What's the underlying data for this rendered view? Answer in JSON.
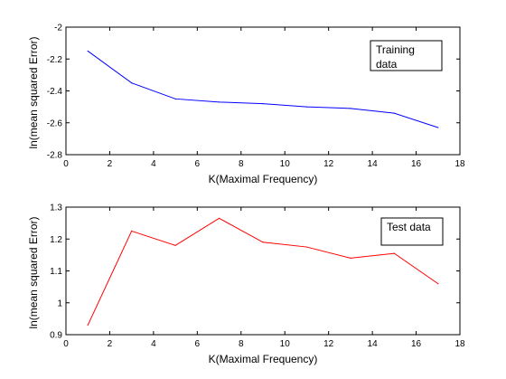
{
  "chart_data": [
    {
      "type": "line",
      "xlabel": "K(Maximal Frequency)",
      "ylabel": "ln(mean squared Error)",
      "xlim": [
        0,
        18
      ],
      "ylim": [
        -2.8,
        -2
      ],
      "xticks": [
        0,
        2,
        4,
        6,
        8,
        10,
        12,
        14,
        16,
        18
      ],
      "yticks": [
        -2.8,
        -2.6,
        -2.4,
        -2.2,
        -2
      ],
      "ytick_labels": [
        "-2.8",
        "-2.6",
        "-2.4",
        "-2.2",
        "-2"
      ],
      "grid": false,
      "legend": {
        "lines": [
          "Training",
          "data"
        ],
        "placement": "top-right"
      },
      "series": [
        {
          "color": "#0000ff",
          "x": [
            1,
            3,
            5,
            7,
            9,
            11,
            13,
            15,
            17
          ],
          "y": [
            -2.15,
            -2.35,
            -2.45,
            -2.47,
            -2.48,
            -2.5,
            -2.51,
            -2.54,
            -2.63
          ]
        }
      ]
    },
    {
      "type": "line",
      "xlabel": "K(Maximal Frequency)",
      "ylabel": "ln(mean squared Error)",
      "xlim": [
        0,
        18
      ],
      "ylim": [
        0.9,
        1.3
      ],
      "xticks": [
        0,
        2,
        4,
        6,
        8,
        10,
        12,
        14,
        16,
        18
      ],
      "yticks": [
        0.9,
        1,
        1.1,
        1.2,
        1.3
      ],
      "ytick_labels": [
        "0.9",
        "1",
        "1.1",
        "1.2",
        "1.3"
      ],
      "grid": false,
      "legend": {
        "lines": [
          "Test data"
        ],
        "placement": "top-right"
      },
      "series": [
        {
          "color": "#ff0000",
          "x": [
            1,
            3,
            5,
            7,
            9,
            11,
            13,
            15,
            17
          ],
          "y": [
            0.93,
            1.225,
            1.18,
            1.265,
            1.19,
            1.175,
            1.14,
            1.155,
            1.06
          ]
        }
      ]
    }
  ]
}
